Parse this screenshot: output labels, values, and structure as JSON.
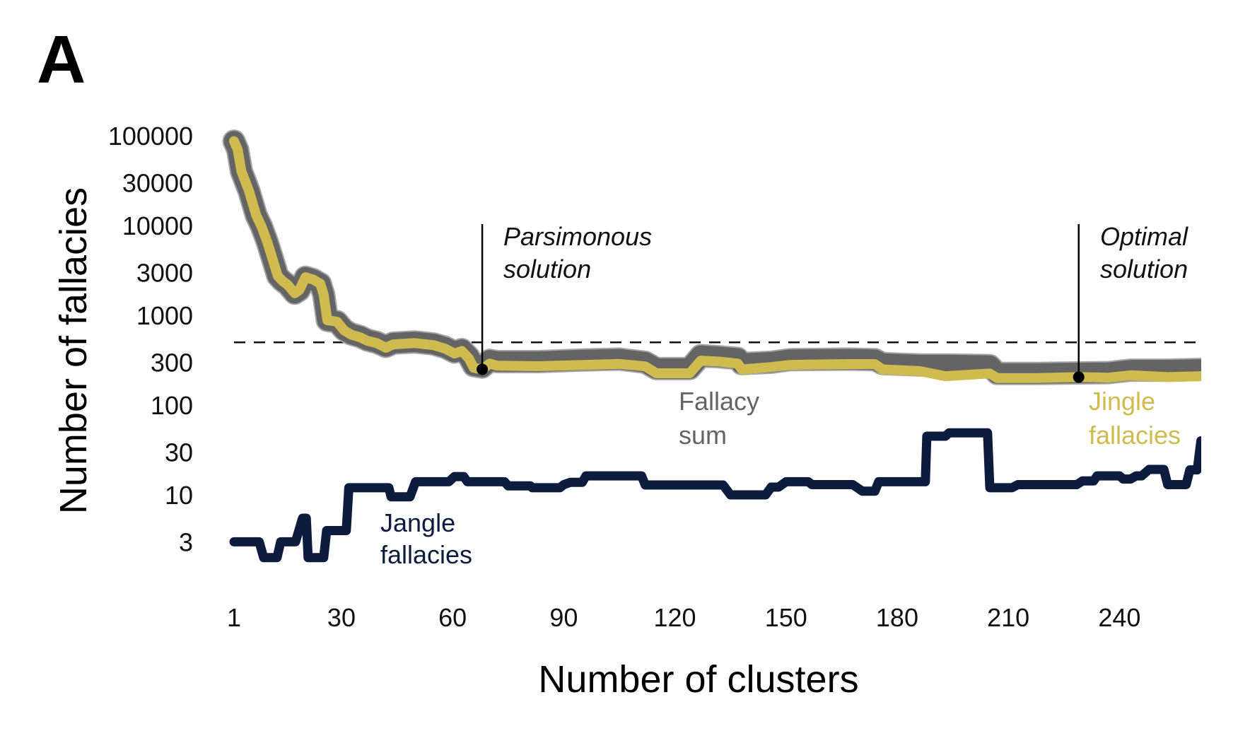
{
  "panel_label": "A",
  "colors": {
    "fallacy_sum": "#646464",
    "jingle": "#cfbb4f",
    "jangle": "#0c1b3e",
    "threshold": "#111111",
    "annotation": "#000000"
  },
  "chart_data": {
    "type": "line",
    "title": "",
    "xlabel": "Number of clusters",
    "ylabel": "Number of fallacies",
    "xlim": [
      1,
      262
    ],
    "ylim": [
      1.6,
      100000
    ],
    "yscale": "log",
    "grid": false,
    "x_ticks": [
      1,
      30,
      60,
      90,
      120,
      150,
      180,
      210,
      240
    ],
    "x_tick_labels": [
      "1",
      "30",
      "60",
      "90",
      "120",
      "150",
      "180",
      "210",
      "240"
    ],
    "y_ticks": [
      100000,
      30000,
      10000,
      3000,
      1000,
      300,
      100,
      30,
      10,
      3
    ],
    "y_tick_labels": [
      "100000",
      "30000",
      "10000",
      "3000",
      "1000",
      "300",
      "100",
      "30",
      "10",
      "3"
    ],
    "threshold": {
      "value": 500,
      "style": "dashed"
    },
    "series": [
      {
        "name": "Fallacy sum",
        "label_lines": [
          "Fallacy",
          "sum"
        ],
        "color": "#646464",
        "points": [
          [
            1,
            87000
          ],
          [
            2,
            70000
          ],
          [
            3,
            40000
          ],
          [
            5,
            24500
          ],
          [
            7,
            13000
          ],
          [
            8.4,
            9800
          ],
          [
            10,
            6500
          ],
          [
            11,
            4800
          ],
          [
            12.8,
            2750
          ],
          [
            14,
            2430
          ],
          [
            15.5,
            2180
          ],
          [
            17.4,
            1760
          ],
          [
            18.6,
            1900
          ],
          [
            20.3,
            2650
          ],
          [
            22.4,
            2500
          ],
          [
            24.3,
            2250
          ],
          [
            25.2,
            1700
          ],
          [
            26.2,
            880
          ],
          [
            28.8,
            850
          ],
          [
            30.7,
            690
          ],
          [
            32.6,
            620
          ],
          [
            35,
            580
          ],
          [
            37,
            530
          ],
          [
            39.5,
            500
          ],
          [
            42,
            450
          ],
          [
            44,
            490
          ],
          [
            49.8,
            505
          ],
          [
            54.8,
            480
          ],
          [
            58,
            440
          ],
          [
            60.5,
            390
          ],
          [
            62.5,
            415
          ],
          [
            64.4,
            345
          ],
          [
            65.7,
            275
          ],
          [
            68,
            265
          ],
          [
            70,
            315
          ],
          [
            72,
            305
          ],
          [
            83,
            305
          ],
          [
            95,
            318
          ],
          [
            105,
            325
          ],
          [
            112,
            300
          ],
          [
            115,
            255
          ],
          [
            124,
            255
          ],
          [
            127,
            355
          ],
          [
            132,
            345
          ],
          [
            137,
            330
          ],
          [
            138,
            290
          ],
          [
            146,
            300
          ],
          [
            151,
            320
          ],
          [
            157,
            322
          ],
          [
            167,
            325
          ],
          [
            174,
            320
          ],
          [
            176,
            290
          ],
          [
            186,
            280
          ],
          [
            193,
            280
          ],
          [
            205,
            275
          ],
          [
            207,
            225
          ],
          [
            218,
            225
          ],
          [
            229,
            228
          ],
          [
            237,
            230
          ],
          [
            243,
            245
          ],
          [
            253,
            245
          ],
          [
            262,
            250
          ]
        ]
      },
      {
        "name": "Jingle fallacies",
        "label_lines": [
          "Jingle",
          "fallacies"
        ],
        "color": "#cfbb4f",
        "points": [
          [
            1,
            87000
          ],
          [
            2,
            70000
          ],
          [
            3,
            40000
          ],
          [
            5,
            24500
          ],
          [
            7,
            13000
          ],
          [
            8.4,
            9800
          ],
          [
            10,
            6500
          ],
          [
            11,
            4800
          ],
          [
            12.8,
            2750
          ],
          [
            14,
            2430
          ],
          [
            15.5,
            2180
          ],
          [
            17.4,
            1760
          ],
          [
            18.6,
            1900
          ],
          [
            20.3,
            2650
          ],
          [
            22.4,
            2500
          ],
          [
            24.3,
            2250
          ],
          [
            25.2,
            1700
          ],
          [
            26.2,
            880
          ],
          [
            28.8,
            850
          ],
          [
            30.7,
            680
          ],
          [
            32.6,
            610
          ],
          [
            35,
            570
          ],
          [
            37,
            520
          ],
          [
            39.5,
            490
          ],
          [
            42,
            435
          ],
          [
            44,
            475
          ],
          [
            49.8,
            490
          ],
          [
            54.8,
            465
          ],
          [
            58,
            425
          ],
          [
            60.5,
            375
          ],
          [
            62.5,
            400
          ],
          [
            64.4,
            330
          ],
          [
            65.7,
            260
          ],
          [
            68,
            250
          ],
          [
            70,
            290
          ],
          [
            72,
            275
          ],
          [
            83,
            271
          ],
          [
            95,
            280
          ],
          [
            105,
            287
          ],
          [
            112,
            270
          ],
          [
            115,
            226
          ],
          [
            124,
            226
          ],
          [
            127,
            313
          ],
          [
            132,
            305
          ],
          [
            137,
            290
          ],
          [
            138,
            250
          ],
          [
            146,
            265
          ],
          [
            151,
            280
          ],
          [
            157,
            283
          ],
          [
            167,
            286
          ],
          [
            174,
            286
          ],
          [
            176,
            250
          ],
          [
            186,
            239
          ],
          [
            193,
            210
          ],
          [
            205,
            225
          ],
          [
            207,
            200
          ],
          [
            218,
            200
          ],
          [
            229,
            205
          ],
          [
            237,
            202
          ],
          [
            243,
            215
          ],
          [
            253,
            205
          ],
          [
            262,
            210
          ]
        ]
      },
      {
        "name": "Jangle fallacies",
        "label_lines": [
          "Jangle",
          "fallacies"
        ],
        "color": "#0c1b3e",
        "points": [
          [
            1,
            3
          ],
          [
            7.8,
            3
          ],
          [
            9,
            2
          ],
          [
            12.6,
            2
          ],
          [
            13.6,
            3
          ],
          [
            17.6,
            3
          ],
          [
            19.5,
            5.5
          ],
          [
            20.5,
            5.5
          ],
          [
            21,
            2
          ],
          [
            25.2,
            2
          ],
          [
            26,
            4
          ],
          [
            31.3,
            4
          ],
          [
            32,
            12
          ],
          [
            42.8,
            12
          ],
          [
            43.4,
            9.5
          ],
          [
            48.5,
            9.5
          ],
          [
            50,
            14
          ],
          [
            59,
            14
          ],
          [
            60.5,
            16
          ],
          [
            63,
            16
          ],
          [
            64,
            14
          ],
          [
            74,
            14
          ],
          [
            75,
            12.6
          ],
          [
            81,
            12.6
          ],
          [
            81.5,
            12
          ],
          [
            89,
            12
          ],
          [
            90,
            13
          ],
          [
            91.8,
            13.8
          ],
          [
            95,
            13.8
          ],
          [
            96,
            16.3
          ],
          [
            111,
            16.3
          ],
          [
            112,
            12.9
          ],
          [
            133,
            12.9
          ],
          [
            135,
            10
          ],
          [
            144.5,
            10
          ],
          [
            146,
            12.2
          ],
          [
            148,
            12.2
          ],
          [
            150,
            14
          ],
          [
            156,
            14
          ],
          [
            157,
            13
          ],
          [
            168,
            13
          ],
          [
            170.6,
            11
          ],
          [
            174,
            11
          ],
          [
            175,
            14
          ],
          [
            187.6,
            14
          ],
          [
            188,
            45
          ],
          [
            193,
            45
          ],
          [
            194,
            49
          ],
          [
            204.4,
            49
          ],
          [
            205,
            12
          ],
          [
            211,
            12
          ],
          [
            212.6,
            13
          ],
          [
            228.5,
            13
          ],
          [
            230,
            14.3
          ],
          [
            233,
            14.3
          ],
          [
            234,
            16.3
          ],
          [
            240,
            16.3
          ],
          [
            241,
            15
          ],
          [
            243,
            15
          ],
          [
            244.5,
            16.3
          ],
          [
            246,
            16.3
          ],
          [
            248,
            19.2
          ],
          [
            252,
            19.2
          ],
          [
            253,
            13
          ],
          [
            258,
            13
          ],
          [
            259,
            19
          ],
          [
            261,
            19
          ],
          [
            262,
            40
          ]
        ]
      }
    ],
    "annotations": [
      {
        "label_lines": [
          "Parsimonous",
          "solution"
        ],
        "x": 68,
        "y": 250
      },
      {
        "label_lines": [
          "Optimal",
          "solution"
        ],
        "x": 229,
        "y": 205
      }
    ]
  }
}
